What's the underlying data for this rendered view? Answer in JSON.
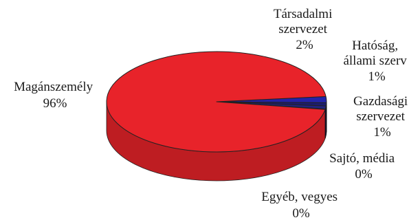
{
  "chart_data": {
    "type": "pie",
    "style": "3d",
    "slices": [
      {
        "name": "Magánszemély",
        "value": 96,
        "label": "96%",
        "color": "#e8232a"
      },
      {
        "name": "Társadalmi szervezet",
        "value": 2,
        "label": "2%",
        "color": "#2323a8"
      },
      {
        "name": "Hatóság, állami szerv",
        "value": 1,
        "label": "1%",
        "color": "#1c1c6e"
      },
      {
        "name": "Gazdasági szervezet",
        "value": 1,
        "label": "1%",
        "color": "#23237e"
      },
      {
        "name": "Sajtó, média",
        "value": 0,
        "label": "0%",
        "color": "#111133"
      },
      {
        "name": "Egyéb, vegyes",
        "value": 0,
        "label": "0%",
        "color": "#111133"
      }
    ],
    "labels": {
      "maganszemely": [
        "Magánszemély",
        "96%"
      ],
      "tarsadalmi": [
        "Társadalmi",
        "szervezet",
        "2%"
      ],
      "hatosag": [
        "Hatóság,",
        "állami szerv",
        "1%"
      ],
      "gazdasagi": [
        "Gazdasági",
        "szervezet",
        "1%"
      ],
      "sajto": [
        "Sajtó, média",
        "0%"
      ],
      "egyeb": [
        "Egyéb, vegyes",
        "0%"
      ]
    }
  }
}
